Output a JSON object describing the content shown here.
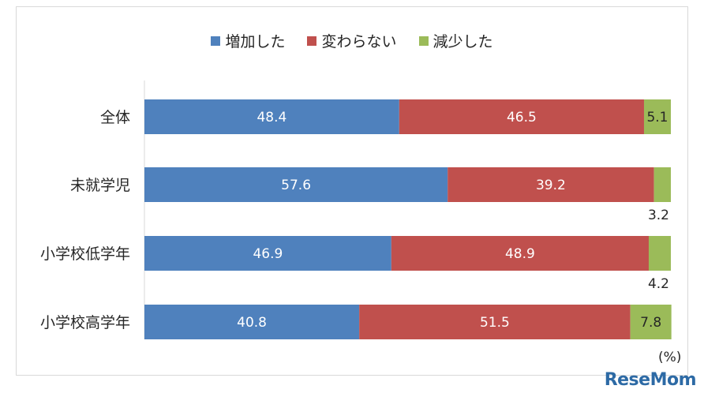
{
  "chart_data": {
    "type": "bar",
    "orientation": "horizontal",
    "stacked": true,
    "categories": [
      "全体",
      "未就学児",
      "小学校低学年",
      "小学校高学年"
    ],
    "series": [
      {
        "name": "増加した",
        "color": "#4f81bd",
        "values": [
          48.4,
          57.6,
          46.9,
          40.8
        ]
      },
      {
        "name": "変わらない",
        "color": "#c0504d",
        "values": [
          46.5,
          39.2,
          48.9,
          51.5
        ]
      },
      {
        "name": "減少した",
        "color": "#9bbb59",
        "values": [
          5.1,
          3.2,
          4.2,
          7.8
        ]
      }
    ],
    "xlim": [
      0,
      100
    ],
    "unit_label": "(%)",
    "legend_position": "top"
  },
  "watermark": "ReseMom"
}
